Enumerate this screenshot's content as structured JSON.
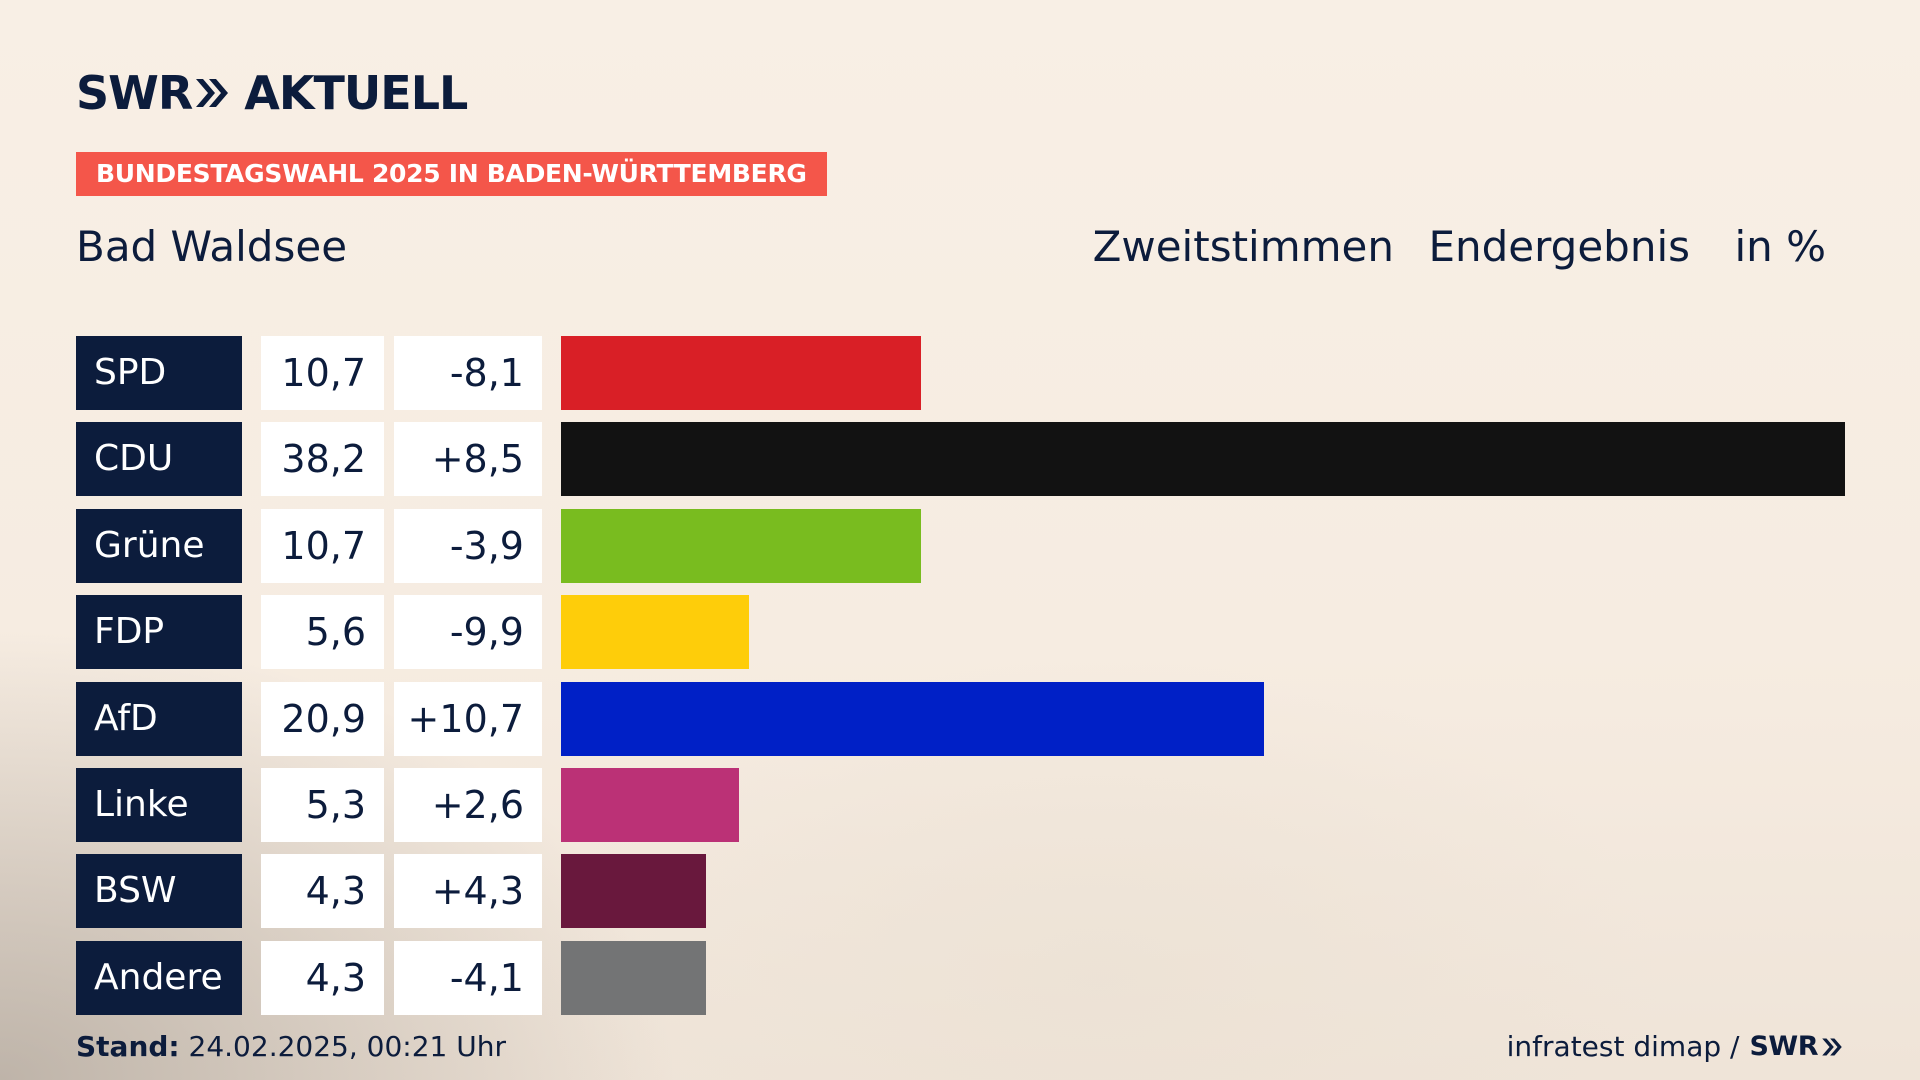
{
  "brand": {
    "logo_left": "SWR",
    "logo_right": "AKTUELL"
  },
  "tag": "BUNDESTAGSWAHL 2025 IN BADEN-WÜRTTEMBERG",
  "place": "Bad Waldsee",
  "header": {
    "votes": "Zweitstimmen",
    "status": "Endergebnis",
    "unit": "in %"
  },
  "chart_data": {
    "type": "bar",
    "orientation": "horizontal",
    "categories": [
      "SPD",
      "CDU",
      "Grüne",
      "FDP",
      "AfD",
      "Linke",
      "BSW",
      "Andere"
    ],
    "values": [
      10.7,
      38.2,
      10.7,
      5.6,
      20.9,
      5.3,
      4.3,
      4.3
    ],
    "value_labels": [
      "10,7",
      "38,2",
      "10,7",
      "5,6",
      "20,9",
      "5,3",
      "4,3",
      "4,3"
    ],
    "changes": [
      -8.1,
      8.5,
      -3.9,
      -9.9,
      10.7,
      2.6,
      4.3,
      -4.1
    ],
    "change_labels": [
      "-8,1",
      "+8,5",
      "-3,9",
      "-9,9",
      "+10,7",
      "+2,6",
      "+4,3",
      "-4,1"
    ],
    "colors": [
      "#d91f26",
      "#121212",
      "#79bc1f",
      "#fecd0a",
      "#0020c6",
      "#bb3176",
      "#69183d",
      "#737475"
    ],
    "xlim": [
      0,
      38.2
    ],
    "grid": false
  },
  "footer": {
    "stand_label": "Stand:",
    "stand_value": "24.02.2025, 00:21 Uhr",
    "source": "infratest dimap /",
    "source_brand": "SWR"
  }
}
